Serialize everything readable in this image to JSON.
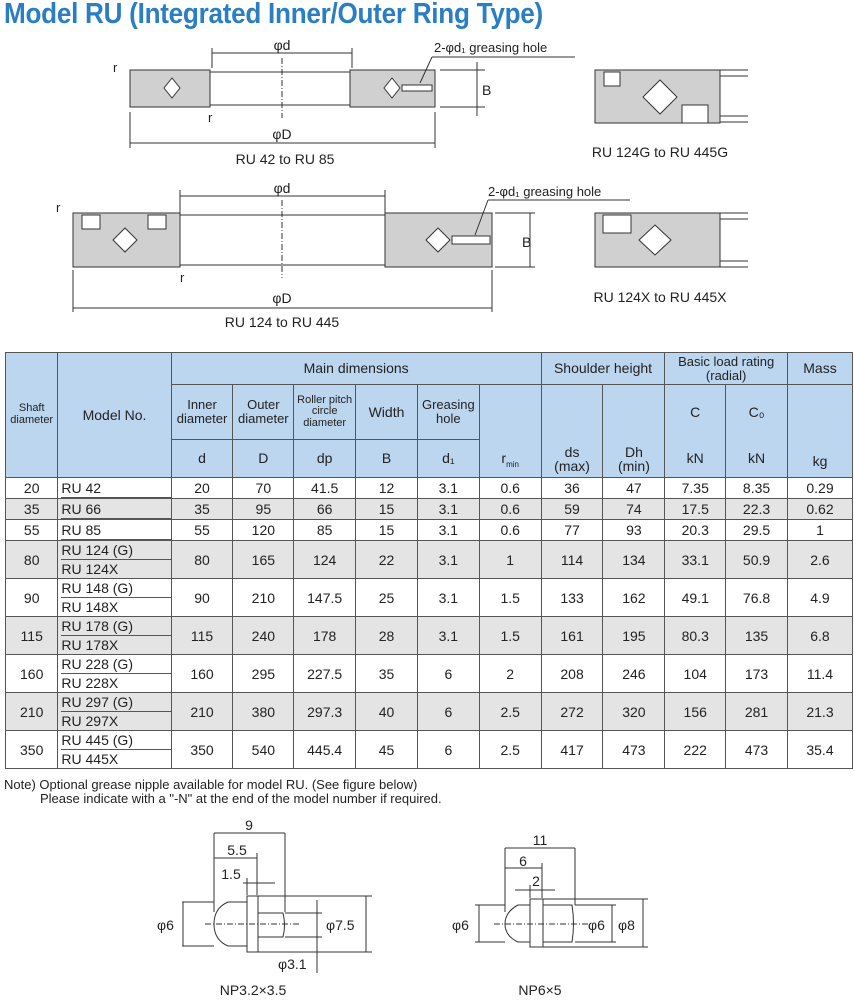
{
  "title": "Model RU (Integrated Inner/Outer Ring Type)",
  "drawings": {
    "phi_d": "φd",
    "phi_D": "φD",
    "B": "B",
    "r": "r",
    "greasing_hole": "2-φd₁ greasing hole",
    "caption_1": "RU 42 to RU 85",
    "caption_2": "RU 124G to RU 445G",
    "caption_3": "RU 124 to RU 445",
    "caption_4": "RU 124X to RU 445X"
  },
  "table": {
    "headers": {
      "shaft": "Shaft diameter",
      "model": "Model No.",
      "main": "Main dimensions",
      "shoulder": "Shoulder height",
      "load": "Basic load rating (radial)",
      "mass": "Mass",
      "inner": "Inner diameter",
      "outer": "Outer diameter",
      "pitch": "Roller pitch circle diameter",
      "width": "Width",
      "grease": "Greasing hole",
      "sym_d": "d",
      "sym_D": "D",
      "sym_dp": "dp",
      "sym_B": "B",
      "sym_d1": "d₁",
      "sym_r": "r",
      "sym_r_sub": "min",
      "sym_ds": "ds",
      "sym_ds2": "(max)",
      "sym_Dh": "Dh",
      "sym_Dh2": "(min)",
      "C": "C",
      "C0": "C₀",
      "kN1": "kN",
      "kN2": "kN",
      "kg": "kg"
    },
    "rows": [
      {
        "shaft": "20",
        "models": [
          "RU 42"
        ],
        "d": "20",
        "D": "70",
        "dp": "41.5",
        "B": "12",
        "d1": "3.1",
        "r": "0.6",
        "ds": "36",
        "Dh": "47",
        "C": "7.35",
        "C0": "8.35",
        "mass": "0.29"
      },
      {
        "shaft": "35",
        "models": [
          "RU 66"
        ],
        "d": "35",
        "D": "95",
        "dp": "66",
        "B": "15",
        "d1": "3.1",
        "r": "0.6",
        "ds": "59",
        "Dh": "74",
        "C": "17.5",
        "C0": "22.3",
        "mass": "0.62"
      },
      {
        "shaft": "55",
        "models": [
          "RU 85"
        ],
        "d": "55",
        "D": "120",
        "dp": "85",
        "B": "15",
        "d1": "3.1",
        "r": "0.6",
        "ds": "77",
        "Dh": "93",
        "C": "20.3",
        "C0": "29.5",
        "mass": "1"
      },
      {
        "shaft": "80",
        "models": [
          "RU 124 (G)",
          "RU 124X"
        ],
        "d": "80",
        "D": "165",
        "dp": "124",
        "B": "22",
        "d1": "3.1",
        "r": "1",
        "ds": "114",
        "Dh": "134",
        "C": "33.1",
        "C0": "50.9",
        "mass": "2.6"
      },
      {
        "shaft": "90",
        "models": [
          "RU 148 (G)",
          "RU 148X"
        ],
        "d": "90",
        "D": "210",
        "dp": "147.5",
        "B": "25",
        "d1": "3.1",
        "r": "1.5",
        "ds": "133",
        "Dh": "162",
        "C": "49.1",
        "C0": "76.8",
        "mass": "4.9"
      },
      {
        "shaft": "115",
        "models": [
          "RU 178 (G)",
          "RU 178X"
        ],
        "d": "115",
        "D": "240",
        "dp": "178",
        "B": "28",
        "d1": "3.1",
        "r": "1.5",
        "ds": "161",
        "Dh": "195",
        "C": "80.3",
        "C0": "135",
        "mass": "6.8"
      },
      {
        "shaft": "160",
        "models": [
          "RU 228 (G)",
          "RU 228X"
        ],
        "d": "160",
        "D": "295",
        "dp": "227.5",
        "B": "35",
        "d1": "6",
        "r": "2",
        "ds": "208",
        "Dh": "246",
        "C": "104",
        "C0": "173",
        "mass": "11.4"
      },
      {
        "shaft": "210",
        "models": [
          "RU 297 (G)",
          "RU 297X"
        ],
        "d": "210",
        "D": "380",
        "dp": "297.3",
        "B": "40",
        "d1": "6",
        "r": "2.5",
        "ds": "272",
        "Dh": "320",
        "C": "156",
        "C0": "281",
        "mass": "21.3"
      },
      {
        "shaft": "350",
        "models": [
          "RU 445 (G)",
          "RU 445X"
        ],
        "d": "350",
        "D": "540",
        "dp": "445.4",
        "B": "45",
        "d1": "6",
        "r": "2.5",
        "ds": "417",
        "Dh": "473",
        "C": "222",
        "C0": "473",
        "mass": "35.4"
      }
    ]
  },
  "note": {
    "line1": "Note) Optional grease nipple available for model RU. (See figure below)",
    "line2": "Please indicate with a \"-N\" at the end of the model number if required."
  },
  "nipples": [
    {
      "name": "NP3.2×3.5",
      "dims": [
        "9",
        "5.5",
        "1.5",
        "φ6",
        "φ7.5",
        "φ3.1"
      ]
    },
    {
      "name": "NP6×5",
      "dims": [
        "11",
        "6",
        "2",
        "φ6",
        "φ6",
        "φ8"
      ]
    }
  ],
  "colors": {
    "title": "#2b7ec2",
    "header_bg": "#bcd6ef",
    "row_alt": "#e4e4e4",
    "ring": "#d0d0d0"
  }
}
